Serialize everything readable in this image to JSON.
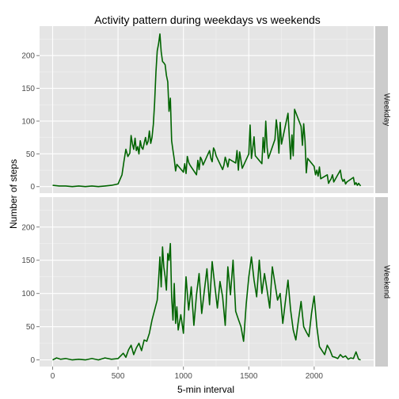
{
  "chart_data": {
    "type": "line",
    "title": "Activity pattern during weekdays vs weekends",
    "xlabel": "5-min interval",
    "ylabel": "Number of steps",
    "xlim": [
      -100,
      2455
    ],
    "ylim": [
      -10,
      245
    ],
    "xticks": [
      0,
      500,
      1000,
      1500,
      2000
    ],
    "yticks": [
      0,
      50,
      100,
      150,
      200
    ],
    "grid": true,
    "line_color": "#006400",
    "panel_bg": "#e5e5e5",
    "grid_color": "#ffffff",
    "strip_bg": "#cccccc",
    "facets": [
      {
        "name": "Weekday",
        "x": [
          0,
          50,
          100,
          150,
          200,
          250,
          300,
          350,
          400,
          450,
          500,
          530,
          545,
          560,
          575,
          590,
          600,
          610,
          620,
          630,
          640,
          650,
          660,
          670,
          680,
          690,
          700,
          710,
          720,
          730,
          740,
          750,
          760,
          770,
          780,
          790,
          800,
          810,
          820,
          830,
          840,
          850,
          860,
          870,
          880,
          890,
          900,
          910,
          920,
          930,
          940,
          950,
          1000,
          1010,
          1020,
          1030,
          1040,
          1050,
          1100,
          1110,
          1120,
          1130,
          1140,
          1150,
          1200,
          1210,
          1220,
          1230,
          1240,
          1250,
          1300,
          1310,
          1320,
          1330,
          1340,
          1350,
          1400,
          1410,
          1420,
          1430,
          1440,
          1450,
          1500,
          1510,
          1520,
          1530,
          1540,
          1550,
          1600,
          1610,
          1620,
          1630,
          1640,
          1650,
          1700,
          1710,
          1720,
          1730,
          1740,
          1750,
          1800,
          1810,
          1820,
          1830,
          1840,
          1850,
          1900,
          1910,
          1920,
          1930,
          1940,
          1950,
          2000,
          2010,
          2020,
          2030,
          2040,
          2050,
          2100,
          2110,
          2120,
          2130,
          2140,
          2150,
          2200,
          2210,
          2220,
          2230,
          2240,
          2250,
          2300,
          2310,
          2320,
          2330,
          2340,
          2355
        ],
        "y": [
          2,
          1,
          1,
          0,
          1,
          0,
          1,
          0,
          1,
          2,
          4,
          18,
          38,
          57,
          46,
          51,
          78,
          65,
          57,
          74,
          55,
          61,
          50,
          70,
          60,
          57,
          66,
          75,
          64,
          69,
          85,
          66,
          75,
          95,
          128,
          175,
          207,
          218,
          233,
          206,
          191,
          189,
          186,
          170,
          160,
          115,
          135,
          70,
          55,
          42,
          24,
          34,
          22,
          35,
          20,
          46,
          37,
          33,
          18,
          40,
          26,
          45,
          41,
          33,
          55,
          43,
          38,
          59,
          55,
          47,
          26,
          33,
          45,
          38,
          30,
          42,
          36,
          55,
          25,
          53,
          40,
          28,
          50,
          94,
          43,
          58,
          76,
          47,
          35,
          75,
          52,
          100,
          60,
          43,
          72,
          102,
          85,
          51,
          98,
          65,
          112,
          75,
          42,
          79,
          47,
          118,
          92,
          63,
          96,
          70,
          21,
          43,
          31,
          18,
          25,
          16,
          30,
          12,
          18,
          5,
          9,
          12,
          18,
          7,
          25,
          13,
          8,
          11,
          4,
          7,
          14,
          3,
          6,
          2,
          5,
          1
        ]
      },
      {
        "name": "Weekend",
        "x": [
          0,
          30,
          60,
          100,
          150,
          200,
          250,
          300,
          350,
          400,
          450,
          500,
          520,
          540,
          560,
          580,
          600,
          620,
          640,
          660,
          680,
          700,
          720,
          740,
          760,
          780,
          800,
          810,
          820,
          830,
          840,
          850,
          860,
          870,
          880,
          890,
          900,
          910,
          920,
          930,
          940,
          950,
          960,
          980,
          1000,
          1020,
          1040,
          1060,
          1080,
          1100,
          1120,
          1140,
          1160,
          1180,
          1200,
          1220,
          1240,
          1260,
          1280,
          1300,
          1320,
          1340,
          1360,
          1380,
          1400,
          1420,
          1440,
          1460,
          1480,
          1500,
          1520,
          1540,
          1560,
          1580,
          1600,
          1620,
          1640,
          1660,
          1680,
          1700,
          1720,
          1740,
          1760,
          1780,
          1800,
          1820,
          1840,
          1860,
          1880,
          1900,
          1920,
          1940,
          1960,
          1980,
          2000,
          2020,
          2040,
          2060,
          2080,
          2100,
          2120,
          2140,
          2160,
          2180,
          2200,
          2220,
          2240,
          2260,
          2280,
          2300,
          2320,
          2340,
          2355
        ],
        "y": [
          0,
          3,
          1,
          2,
          0,
          1,
          0,
          2,
          0,
          3,
          1,
          2,
          6,
          10,
          4,
          15,
          22,
          8,
          18,
          25,
          14,
          30,
          28,
          40,
          60,
          75,
          90,
          120,
          155,
          110,
          170,
          140,
          125,
          105,
          160,
          150,
          175,
          95,
          60,
          115,
          55,
          80,
          45,
          68,
          40,
          125,
          75,
          110,
          52,
          98,
          130,
          70,
          104,
          137,
          83,
          148,
          112,
          78,
          118,
          95,
          52,
          140,
          98,
          150,
          73,
          61,
          50,
          28,
          84,
          125,
          155,
          120,
          95,
          150,
          100,
          130,
          105,
          78,
          140,
          115,
          90,
          100,
          55,
          88,
          120,
          75,
          45,
          30,
          60,
          88,
          50,
          42,
          35,
          70,
          96,
          50,
          20,
          14,
          8,
          22,
          15,
          5,
          4,
          2,
          8,
          4,
          6,
          1,
          3,
          2,
          12,
          1,
          0
        ]
      }
    ]
  }
}
